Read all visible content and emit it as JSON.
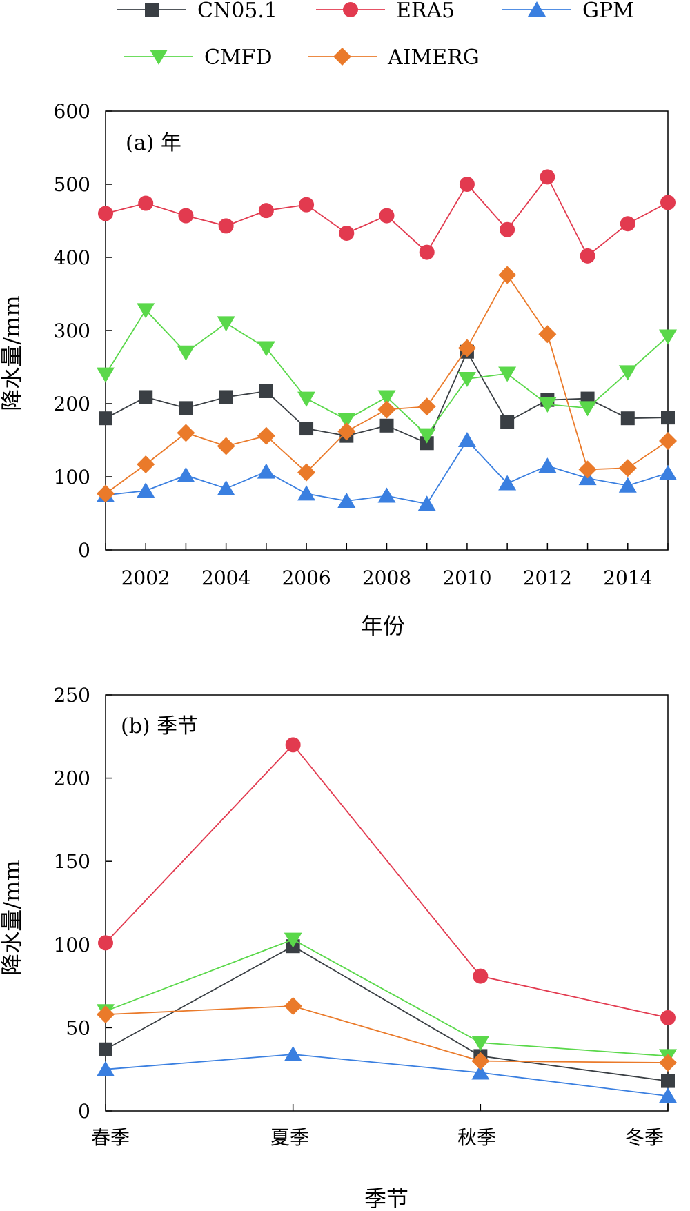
{
  "colors": {
    "CN05.1": "#3a3f44",
    "ERA5": "#e23a4f",
    "GPM": "#3a7fe0",
    "CMFD": "#5ad84a",
    "AIMERG": "#ea7a2a"
  },
  "chart_data": [
    {
      "type": "line",
      "panel_label": "(a) 年",
      "xlabel": "年份",
      "ylabel": "降水量/mm",
      "x": [
        2001,
        2002,
        2003,
        2004,
        2005,
        2006,
        2007,
        2008,
        2009,
        2010,
        2011,
        2012,
        2013,
        2014,
        2015
      ],
      "xlim": [
        2001,
        2015
      ],
      "ylim": [
        0,
        600
      ],
      "xticks": [
        "2002",
        "2004",
        "2006",
        "2008",
        "2010",
        "2012",
        "2014"
      ],
      "yticks": [
        "0",
        "100",
        "200",
        "300",
        "400",
        "500",
        "600"
      ],
      "grid": false,
      "series": [
        {
          "name": "CN05.1",
          "marker": "square",
          "values": [
            180,
            209,
            194,
            209,
            217,
            166,
            156,
            170,
            146,
            271,
            175,
            205,
            207,
            180,
            181
          ]
        },
        {
          "name": "ERA5",
          "marker": "circle",
          "values": [
            460,
            474,
            457,
            443,
            464,
            472,
            433,
            457,
            407,
            500,
            438,
            510,
            402,
            446,
            475
          ]
        },
        {
          "name": "GPM",
          "marker": "triangle-up",
          "values": [
            75,
            81,
            102,
            84,
            107,
            77,
            67,
            74,
            63,
            150,
            91,
            115,
            98,
            88,
            105
          ]
        },
        {
          "name": "CMFD",
          "marker": "triangle-down",
          "values": [
            240,
            328,
            270,
            310,
            276,
            207,
            178,
            209,
            157,
            234,
            241,
            199,
            194,
            243,
            292
          ]
        },
        {
          "name": "AIMERG",
          "marker": "diamond",
          "values": [
            77,
            117,
            160,
            142,
            156,
            106,
            162,
            192,
            196,
            276,
            376,
            295,
            110,
            112,
            149
          ]
        }
      ]
    },
    {
      "type": "line",
      "panel_label": "(b) 季节",
      "xlabel": "季节",
      "ylabel": "降水量/mm",
      "categories": [
        "春季",
        "夏季",
        "秋季",
        "冬季"
      ],
      "ylim": [
        0,
        250
      ],
      "yticks": [
        "0",
        "50",
        "100",
        "150",
        "200",
        "250"
      ],
      "grid": false,
      "series": [
        {
          "name": "CN05.1",
          "marker": "square",
          "values": [
            37,
            99,
            33,
            18
          ]
        },
        {
          "name": "ERA5",
          "marker": "circle",
          "values": [
            101,
            220,
            81,
            56
          ]
        },
        {
          "name": "GPM",
          "marker": "triangle-up",
          "values": [
            25,
            34,
            23,
            9
          ]
        },
        {
          "name": "CMFD",
          "marker": "triangle-down",
          "values": [
            60,
            103,
            41,
            33
          ]
        },
        {
          "name": "AIMERG",
          "marker": "diamond",
          "values": [
            58,
            63,
            30,
            29
          ]
        }
      ]
    }
  ]
}
